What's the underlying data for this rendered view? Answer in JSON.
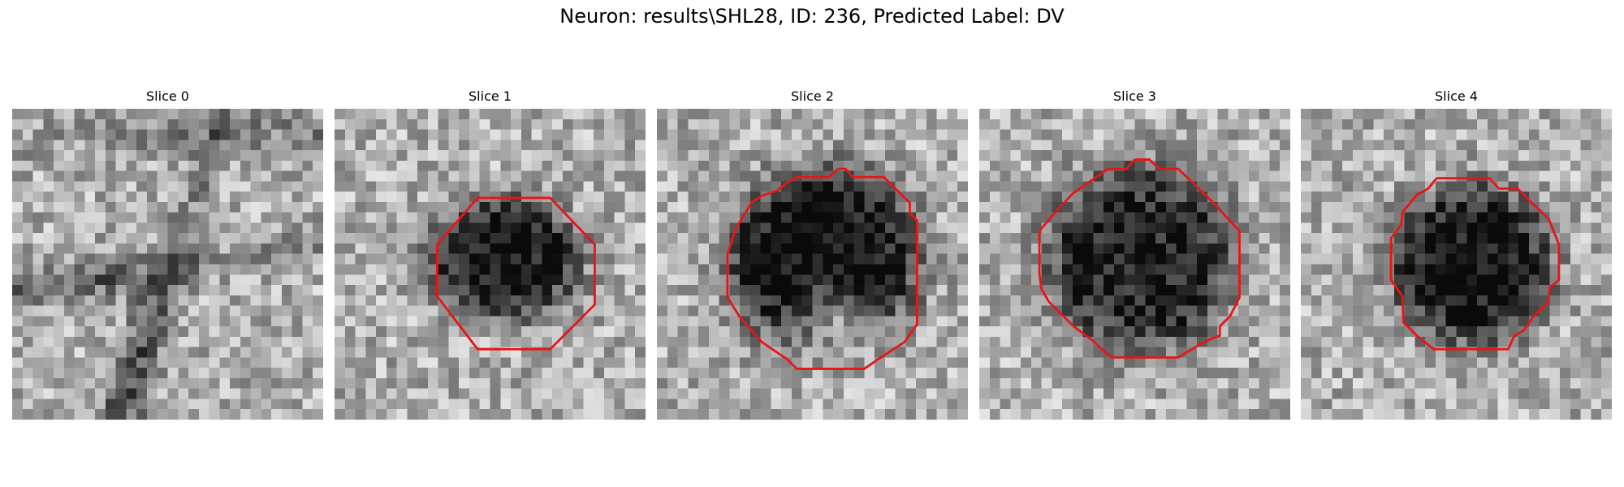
{
  "figure": {
    "title": "Neuron: results\\SHL28, ID: 236, Predicted Label: DV"
  },
  "colors": {
    "contour": "#e81515",
    "background": "#ffffff"
  },
  "panels": [
    {
      "title": "Slice 0",
      "seed": 11,
      "has_contour": false
    },
    {
      "title": "Slice 1",
      "seed": 23,
      "has_contour": true
    },
    {
      "title": "Slice 2",
      "seed": 37,
      "has_contour": true
    },
    {
      "title": "Slice 3",
      "seed": 41,
      "has_contour": true
    },
    {
      "title": "Slice 4",
      "seed": 53,
      "has_contour": true
    }
  ]
}
